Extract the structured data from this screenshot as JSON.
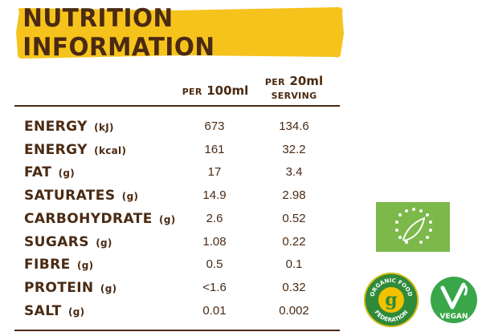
{
  "title": "NUTRITION INFORMATION",
  "columns": {
    "per100": {
      "prefix": "PER",
      "amount": "100ml"
    },
    "serving": {
      "prefix": "PER",
      "amount": "20ml",
      "line2": "SERVING"
    }
  },
  "rows": [
    {
      "name": "ENERGY",
      "unit": "(kJ)",
      "per100": "673",
      "serving": "134.6"
    },
    {
      "name": "ENERGY",
      "unit": "(kcal)",
      "per100": "161",
      "serving": "32.2"
    },
    {
      "name": "FAT",
      "unit": "(g)",
      "per100": "17",
      "serving": "3.4"
    },
    {
      "name": "SATURATES",
      "unit": "(g)",
      "per100": "14.9",
      "serving": "2.98"
    },
    {
      "name": "CARBOHYDRATE",
      "unit": "(g)",
      "per100": "2.6",
      "serving": "0.52"
    },
    {
      "name": "SUGARS",
      "unit": "(g)",
      "per100": "1.08",
      "serving": "0.22"
    },
    {
      "name": "FIBRE",
      "unit": "(g)",
      "per100": "0.5",
      "serving": "0.1"
    },
    {
      "name": "PROTEIN",
      "unit": "(g)",
      "per100": "<1.6",
      "serving": "0.32"
    },
    {
      "name": "SALT",
      "unit": "(g)",
      "per100": "0.01",
      "serving": "0.002"
    }
  ],
  "logos": {
    "eu_organic": "eu-organic-leaf-icon",
    "organic_food_federation": {
      "top": "ORGANIC FOOD",
      "bottom": "FEDERATION",
      "letter": "g"
    },
    "vegan": {
      "text": "VEGAN"
    }
  },
  "colors": {
    "text": "#4a2a12",
    "banner": "#f6c31c",
    "eu_green": "#7cb84a",
    "ofg_green": "#2f8a3a",
    "ofg_yellow": "#f2c200",
    "vegan_green": "#3aa64a"
  }
}
